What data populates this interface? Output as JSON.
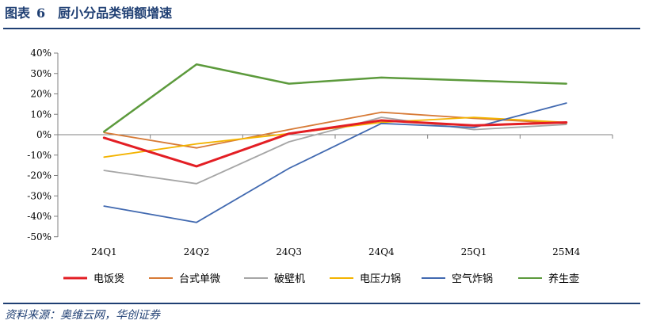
{
  "figure": {
    "label": "图表",
    "number": "6",
    "title": "厨小分品类销额增速"
  },
  "source": "资料来源：奥维云网，华创证券",
  "chart_data": {
    "type": "line",
    "categories": [
      "24Q1",
      "24Q2",
      "24Q3",
      "24Q4",
      "25Q1",
      "25M4"
    ],
    "ylim": [
      -0.5,
      0.4
    ],
    "yticks": [
      -0.5,
      -0.4,
      -0.3,
      -0.2,
      -0.1,
      0,
      0.1,
      0.2,
      0.3,
      0.4
    ],
    "ytick_labels": [
      "-50%",
      "-40%",
      "-30%",
      "-20%",
      "-10%",
      "0%",
      "10%",
      "20%",
      "30%",
      "40%"
    ],
    "grid": false,
    "legend_position": "bottom",
    "series": [
      {
        "name": "电饭煲",
        "color": "#e31e24",
        "values": [
          -0.015,
          -0.155,
          0.005,
          0.07,
          0.045,
          0.06
        ]
      },
      {
        "name": "台式单微",
        "color": "#d77a36",
        "values": [
          0.01,
          -0.065,
          0.025,
          0.11,
          0.08,
          0.055
        ]
      },
      {
        "name": "破壁机",
        "color": "#a6a6a6",
        "values": [
          -0.175,
          -0.24,
          -0.035,
          0.085,
          0.025,
          0.05
        ]
      },
      {
        "name": "电压力锅",
        "color": "#f3b300",
        "values": [
          -0.11,
          -0.045,
          0.005,
          0.06,
          0.085,
          0.06
        ]
      },
      {
        "name": "空气炸锅",
        "color": "#4169b0",
        "values": [
          -0.35,
          -0.43,
          -0.165,
          0.055,
          0.035,
          0.155
        ]
      },
      {
        "name": "养生壶",
        "color": "#5c9a3c",
        "values": [
          0.015,
          0.345,
          0.25,
          0.28,
          0.265,
          0.25
        ]
      }
    ]
  }
}
